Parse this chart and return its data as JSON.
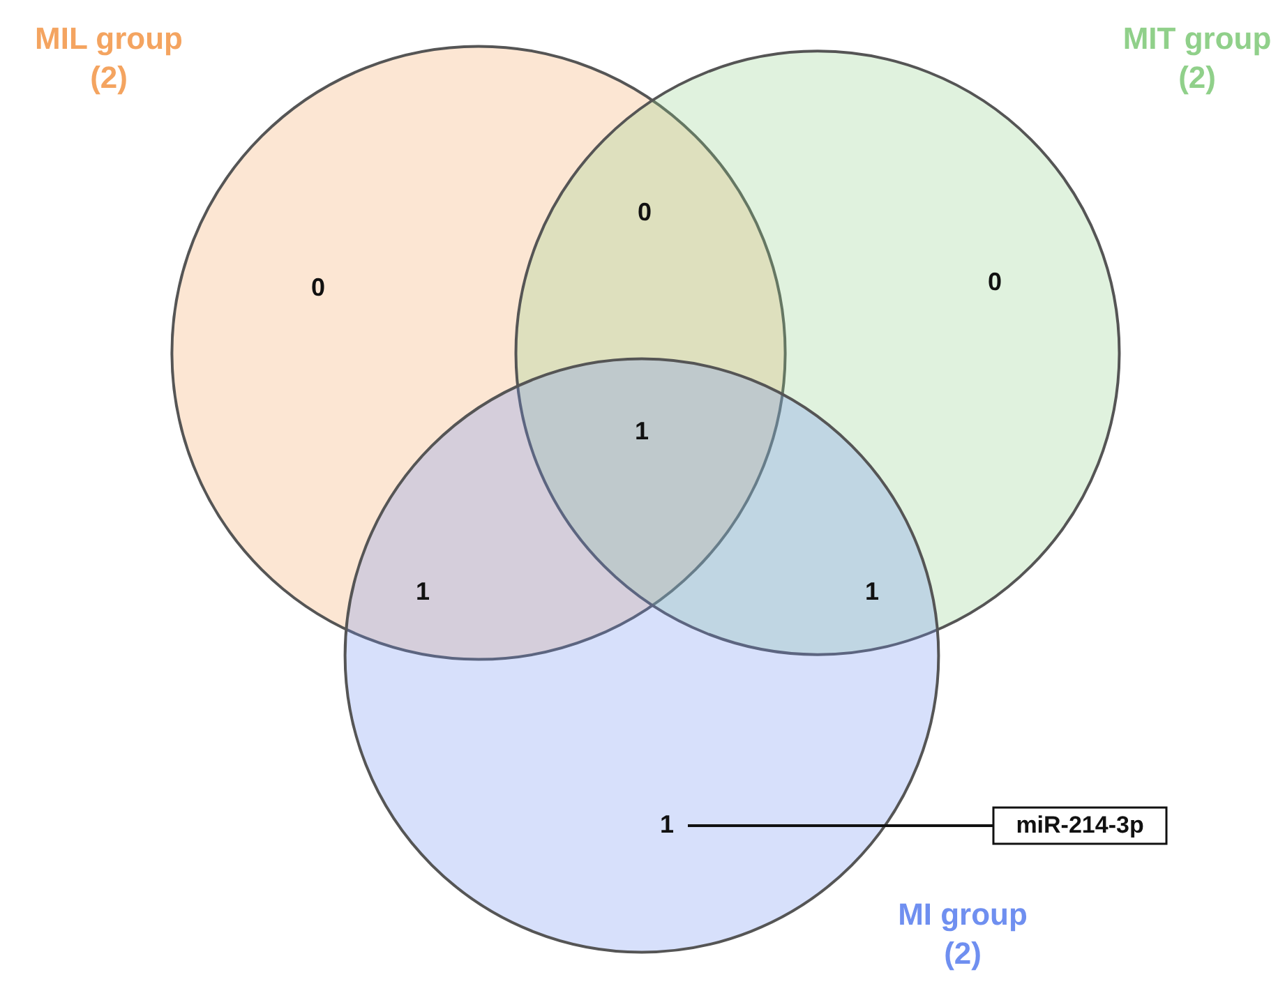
{
  "chart_data": {
    "type": "other",
    "categories": [
      "MIL group",
      "MIT group",
      "MI group"
    ],
    "values": [
      2,
      2,
      2
    ],
    "value_labels": [
      "(2)",
      "(2)",
      "(2)"
    ],
    "colors": [
      "#f4a460",
      "#90d08a",
      "#6f8ff0"
    ],
    "annotations": [
      "0",
      "0",
      "1",
      "0",
      "1",
      "1",
      "1",
      "miR-214-3p"
    ]
  }
}
